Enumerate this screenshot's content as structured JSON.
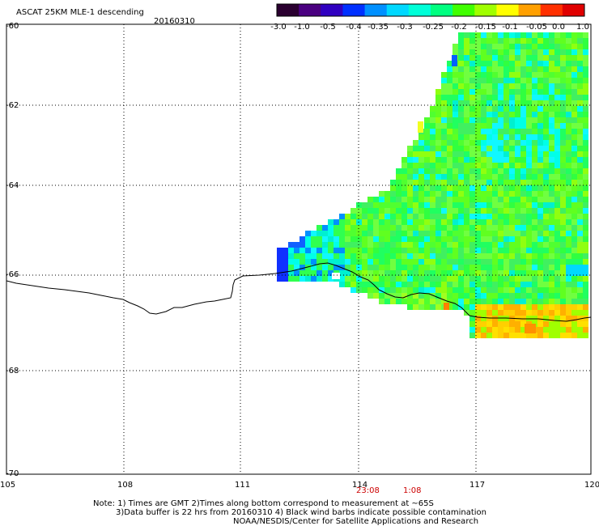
{
  "header": {
    "title": "ASCAT 25KM MLE-1 descending",
    "date": "20160310"
  },
  "colorbar": {
    "labels": [
      "-3.0",
      "-1.0",
      "-0.5",
      "-0.4",
      "-0.35",
      "-0.3",
      "-0.25",
      "-0.2",
      "-0.15",
      "-0.1",
      "-0.05",
      "0.0",
      "1.0"
    ],
    "colors": [
      "#2a0030",
      "#4a0080",
      "#3000c0",
      "#0030ff",
      "#0090ff",
      "#00d8ff",
      "#00ffd8",
      "#00ff80",
      "#40ff00",
      "#a0ff00",
      "#ffff00",
      "#ffa000",
      "#ff3000",
      "#e00000"
    ]
  },
  "axes": {
    "lon_ticks": [
      "105",
      "108",
      "111",
      "114",
      "117",
      "120"
    ],
    "lat_ticks": [
      "-60",
      "-62",
      "-64",
      "-66",
      "-68",
      "-70"
    ]
  },
  "pass_times": [
    "23:08",
    "1:08"
  ],
  "footer": {
    "note_line1": "Note: 1) Times are GMT 2)Times along bottom correspond to measurement at ~65S",
    "note_line2": "3)Data buffer is 22 hrs from 20160310 4) Black wind barbs indicate possible contamination",
    "note_line3": "NOAA/NESDIS/Center for Satellite Applications and Research"
  },
  "colors": {
    "coast": "#000000",
    "grid": "#000000",
    "time_text": "#cc0000"
  }
}
